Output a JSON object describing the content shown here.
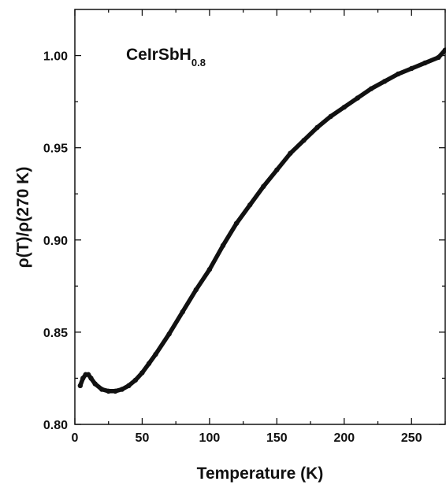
{
  "chart_data": {
    "type": "line",
    "xlabel": "Temperature (K)",
    "ylabel": "ρ(T)/ρ(270 K)",
    "xlim": [
      0,
      275
    ],
    "ylim": [
      0.8,
      1.025
    ],
    "x_ticks": [
      0,
      50,
      100,
      150,
      200,
      250
    ],
    "y_ticks": [
      "0.80",
      "0.85",
      "0.90",
      "0.95",
      "1.00"
    ],
    "annotation": {
      "main": "CeIrSbH",
      "subscript": "0.8"
    },
    "legend": "none",
    "grid": false,
    "series": [
      {
        "color": "#111111",
        "x": [
          4,
          6,
          8,
          10,
          12,
          15,
          20,
          25,
          30,
          35,
          40,
          45,
          50,
          55,
          60,
          70,
          80,
          90,
          100,
          110,
          120,
          130,
          140,
          150,
          160,
          170,
          180,
          190,
          200,
          210,
          220,
          230,
          240,
          250,
          260,
          270,
          275
        ],
        "y": [
          0.821,
          0.825,
          0.827,
          0.827,
          0.825,
          0.822,
          0.819,
          0.818,
          0.818,
          0.819,
          0.821,
          0.824,
          0.828,
          0.833,
          0.838,
          0.849,
          0.861,
          0.873,
          0.884,
          0.897,
          0.909,
          0.919,
          0.929,
          0.938,
          0.947,
          0.954,
          0.961,
          0.967,
          0.972,
          0.977,
          0.982,
          0.986,
          0.99,
          0.993,
          0.996,
          0.999,
          1.003
        ]
      }
    ]
  }
}
